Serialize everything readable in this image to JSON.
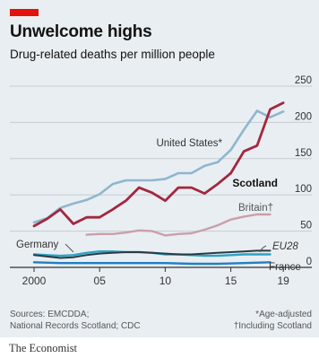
{
  "colors": {
    "background": "#e9eef2",
    "accent": "#e3120b",
    "united_states": "#8fb6cf",
    "scotland": "#a3273f",
    "britain": "#c9a0a8",
    "germany": "#2ba4c4",
    "eu28": "#2b3a44",
    "france": "#1f7fc4",
    "grid": "#c5ccd2"
  },
  "chart_data": {
    "type": "line",
    "title": "Unwelcome highs",
    "subtitle": "Drug-related deaths per million people",
    "xlim": [
      2000,
      2019.4
    ],
    "ylim": [
      0,
      250
    ],
    "yticks": [
      0,
      50,
      100,
      150,
      200,
      250
    ],
    "ytick_labels": [
      "0",
      "50",
      "100",
      "150",
      "200",
      "250"
    ],
    "xticks": [
      2000,
      2005,
      2010,
      2015,
      2019
    ],
    "xtick_labels": [
      "2000",
      "05",
      "10",
      "15",
      "19"
    ],
    "grid": "horizontal",
    "series": [
      {
        "name": "United States*",
        "key": "united_states",
        "x": [
          2000,
          2001,
          2002,
          2003,
          2004,
          2005,
          2006,
          2007,
          2008,
          2009,
          2010,
          2011,
          2012,
          2013,
          2014,
          2015,
          2016,
          2017,
          2018,
          2019
        ],
        "y": [
          62,
          68,
          82,
          88,
          93,
          101,
          115,
          120,
          120,
          120,
          122,
          130,
          130,
          140,
          145,
          162,
          190,
          216,
          207,
          215
        ]
      },
      {
        "name": "Scotland",
        "key": "scotland",
        "x": [
          2000,
          2001,
          2002,
          2003,
          2004,
          2005,
          2006,
          2007,
          2008,
          2009,
          2010,
          2011,
          2012,
          2013,
          2014,
          2015,
          2016,
          2017,
          2018,
          2019
        ],
        "y": [
          57,
          67,
          80,
          60,
          69,
          69,
          80,
          92,
          110,
          103,
          92,
          110,
          110,
          102,
          115,
          130,
          160,
          168,
          218,
          227
        ]
      },
      {
        "name": "Britain†",
        "key": "britain",
        "x": [
          2004,
          2005,
          2006,
          2007,
          2008,
          2009,
          2010,
          2011,
          2012,
          2013,
          2014,
          2015,
          2016,
          2017,
          2018
        ],
        "y": [
          45,
          46,
          46,
          48,
          51,
          50,
          44,
          46,
          47,
          52,
          58,
          66,
          70,
          73,
          73
        ]
      },
      {
        "name": "Germany",
        "key": "germany",
        "x": [
          2000,
          2001,
          2002,
          2003,
          2004,
          2005,
          2006,
          2007,
          2008,
          2009,
          2010,
          2011,
          2012,
          2013,
          2014,
          2015,
          2016,
          2017,
          2018
        ],
        "y": [
          18,
          17,
          16,
          17,
          20,
          22,
          22,
          21,
          21,
          20,
          18,
          18,
          17,
          16,
          16,
          17,
          18,
          18,
          18
        ]
      },
      {
        "name": "EU28",
        "key": "eu28",
        "x": [
          2000,
          2001,
          2002,
          2003,
          2004,
          2005,
          2006,
          2007,
          2008,
          2009,
          2010,
          2011,
          2012,
          2013,
          2014,
          2015,
          2016,
          2017,
          2018
        ],
        "y": [
          17,
          15,
          13,
          14,
          17,
          19,
          20,
          21,
          21,
          20,
          19,
          18,
          18,
          19,
          20,
          21,
          22,
          23,
          23
        ]
      },
      {
        "name": "France",
        "key": "france",
        "x": [
          2000,
          2002,
          2004,
          2006,
          2008,
          2010,
          2012,
          2014,
          2016,
          2018
        ],
        "y": [
          7,
          6,
          6,
          6,
          6,
          6,
          5,
          5,
          6,
          7
        ]
      }
    ]
  },
  "labels": {
    "united_states": "United States*",
    "scotland": "Scotland",
    "britain": "Britain†",
    "germany": "Germany",
    "eu28": "EU28",
    "france": "France"
  },
  "source_lines": [
    "Sources: EMCDDA;",
    "National Records Scotland; CDC"
  ],
  "note_lines": [
    "*Age-adjusted",
    "†Including Scotland"
  ],
  "brand": "The Economist"
}
